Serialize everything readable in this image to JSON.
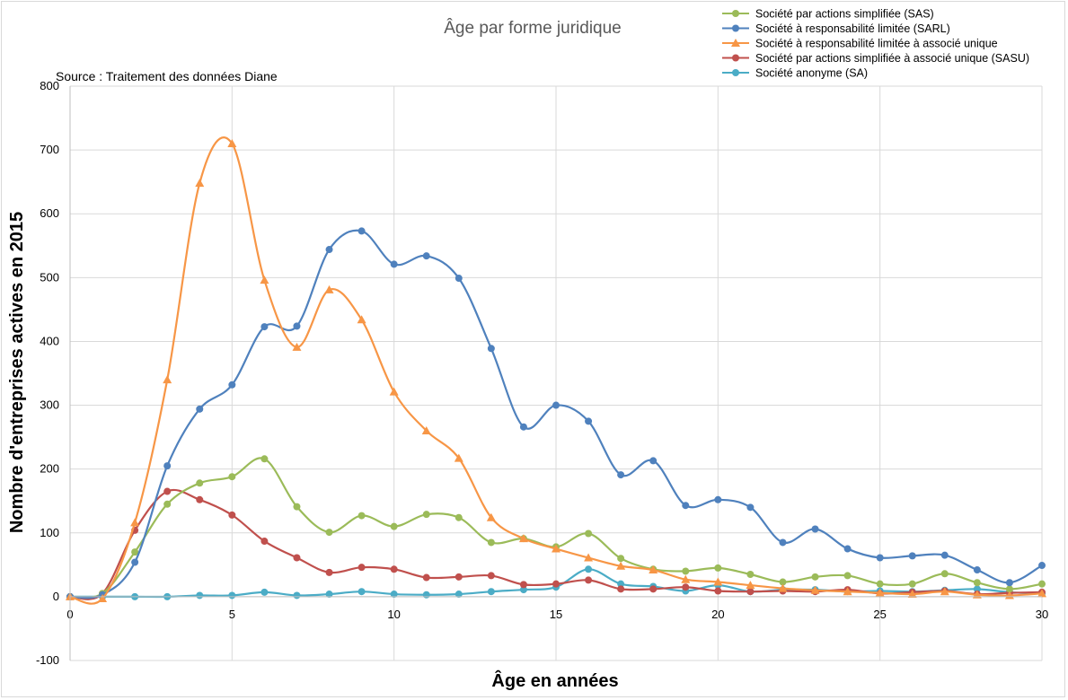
{
  "chart_data": {
    "type": "line",
    "title": "Âge par forme juridique",
    "subtitle": "Source : Traitement des données Diane",
    "xlabel": "Âge en années",
    "ylabel": "Nombre d'entreprises actives en 2015",
    "xlim": [
      0,
      30
    ],
    "ylim": [
      -100,
      800
    ],
    "xticks": [
      "0",
      "5",
      "10",
      "15",
      "20",
      "25",
      "30"
    ],
    "yticks": [
      "-100",
      "0",
      "100",
      "200",
      "300",
      "400",
      "500",
      "600",
      "700",
      "800"
    ],
    "grid": true,
    "legend_position": "top-right",
    "x": [
      0,
      1,
      2,
      3,
      4,
      5,
      6,
      7,
      8,
      9,
      10,
      11,
      12,
      13,
      14,
      15,
      16,
      17,
      18,
      19,
      20,
      21,
      22,
      23,
      24,
      25,
      26,
      27,
      28,
      29,
      30
    ],
    "series": [
      {
        "name": "Société par actions simplifiée (SAS)",
        "color": "#9bbb59",
        "marker": "circle",
        "values": [
          0,
          5,
          70,
          145,
          178,
          188,
          216,
          141,
          101,
          127,
          110,
          129,
          124,
          85,
          91,
          78,
          99,
          60,
          43,
          40,
          45,
          35,
          23,
          31,
          33,
          20,
          20,
          36,
          22,
          12,
          20
        ]
      },
      {
        "name": "Société à responsabilité limitée (SARL)",
        "color": "#4f81bd",
        "marker": "circle",
        "values": [
          0,
          3,
          54,
          205,
          294,
          332,
          423,
          424,
          544,
          573,
          521,
          534,
          499,
          389,
          266,
          300,
          275,
          191,
          213,
          143,
          152,
          140,
          85,
          106,
          75,
          61,
          64,
          65,
          42,
          22,
          49
        ]
      },
      {
        "name": "Société à responsabilité limitée à associé unique",
        "color": "#f79646",
        "marker": "triangle",
        "values": [
          0,
          -3,
          116,
          340,
          648,
          710,
          496,
          391,
          481,
          434,
          321,
          260,
          217,
          124,
          91,
          75,
          61,
          48,
          42,
          27,
          23,
          18,
          13,
          10,
          8,
          6,
          4,
          8,
          3,
          2,
          5
        ]
      },
      {
        "name": "Société par actions simplifiée à associé unique (SASU)",
        "color": "#c0504d",
        "marker": "circle",
        "values": [
          0,
          5,
          104,
          165,
          152,
          128,
          87,
          61,
          38,
          46,
          43,
          30,
          31,
          33,
          19,
          20,
          26,
          12,
          12,
          15,
          9,
          8,
          9,
          8,
          11,
          5,
          7,
          9,
          4,
          6,
          7
        ]
      },
      {
        "name": "Société anonyme (SA)",
        "color": "#4bacc6",
        "marker": "circle",
        "values": [
          0,
          0,
          0,
          0,
          2,
          2,
          7,
          2,
          4,
          8,
          4,
          3,
          4,
          8,
          11,
          15,
          43,
          20,
          16,
          9,
          18,
          8,
          11,
          11,
          8,
          9,
          8,
          10,
          12,
          7,
          5
        ]
      }
    ]
  }
}
